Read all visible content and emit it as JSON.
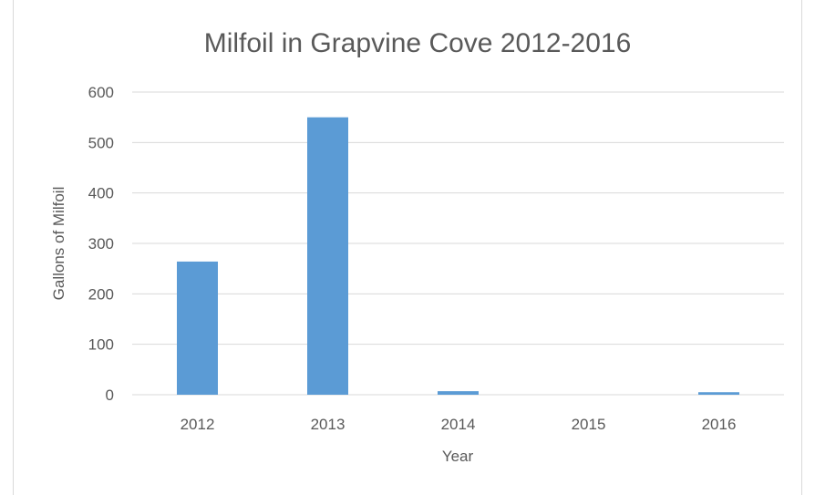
{
  "chart_data": {
    "type": "bar",
    "title": "Milfoil in Grapvine Cove 2012-2016",
    "xlabel": "Year",
    "ylabel": "Gallons of Milfoil",
    "categories": [
      "2012",
      "2013",
      "2014",
      "2015",
      "2016"
    ],
    "values": [
      264,
      550,
      7,
      0,
      5
    ],
    "ylim": [
      0,
      600
    ],
    "yticks": [
      0,
      100,
      200,
      300,
      400,
      500,
      600
    ],
    "grid": true,
    "legend": "none",
    "bar_color": "#5b9bd5",
    "grid_color": "#d9d9d9"
  }
}
